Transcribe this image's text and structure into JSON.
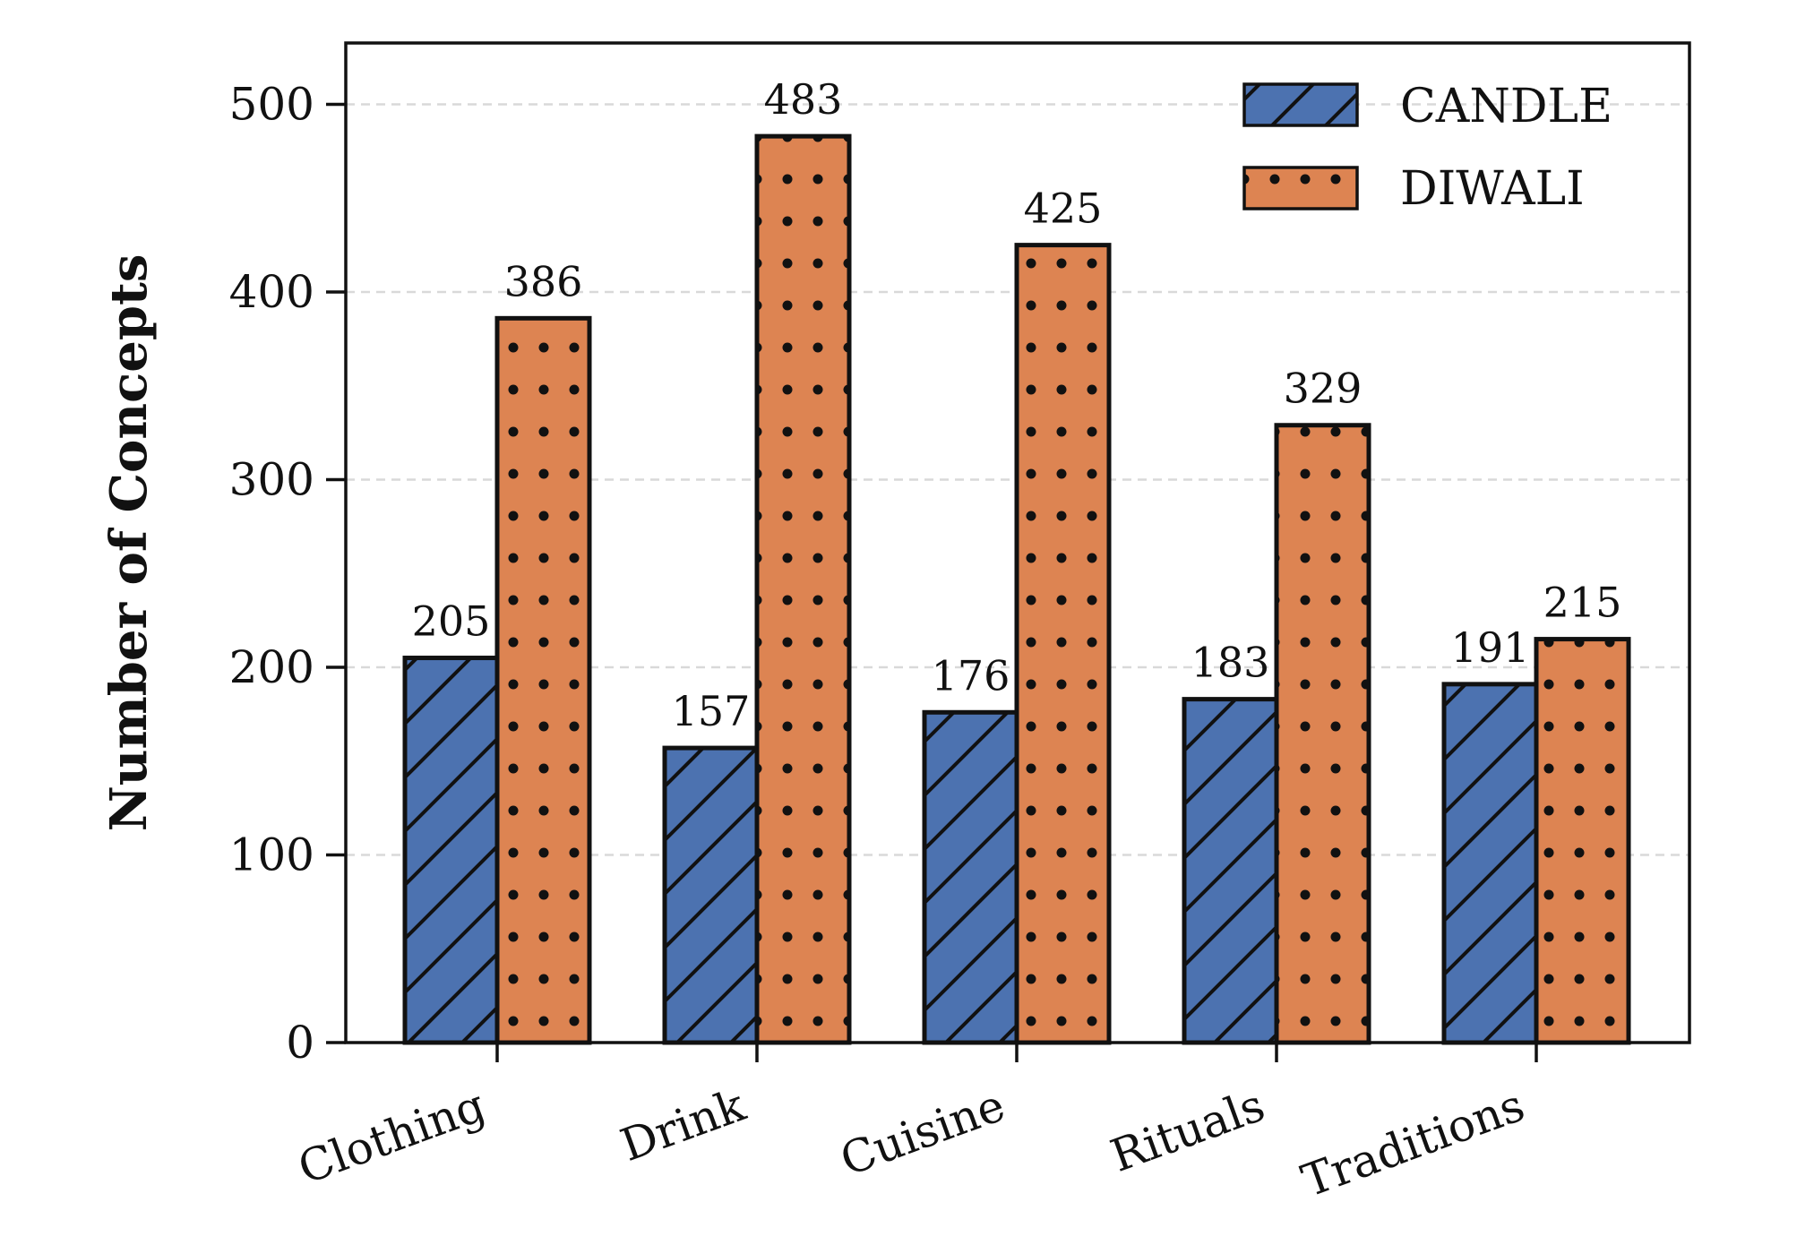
{
  "chart_data": {
    "type": "bar",
    "title": "",
    "xlabel": "",
    "ylabel": "Number of Concepts",
    "ylim": [
      0,
      530
    ],
    "yticks": [
      0,
      100,
      200,
      300,
      400,
      500
    ],
    "grid": true,
    "legend_position": "top-right",
    "categories": [
      "Clothing",
      "Drink",
      "Cuisine",
      "Rituals",
      "Traditions"
    ],
    "series": [
      {
        "name": "CANDLE",
        "values": [
          205,
          157,
          176,
          183,
          191
        ],
        "color": "#4C72B0",
        "hatch": "diagonal"
      },
      {
        "name": "DIWALI",
        "values": [
          386,
          483,
          425,
          329,
          215
        ],
        "color": "#DD8452",
        "hatch": "dots"
      }
    ]
  }
}
